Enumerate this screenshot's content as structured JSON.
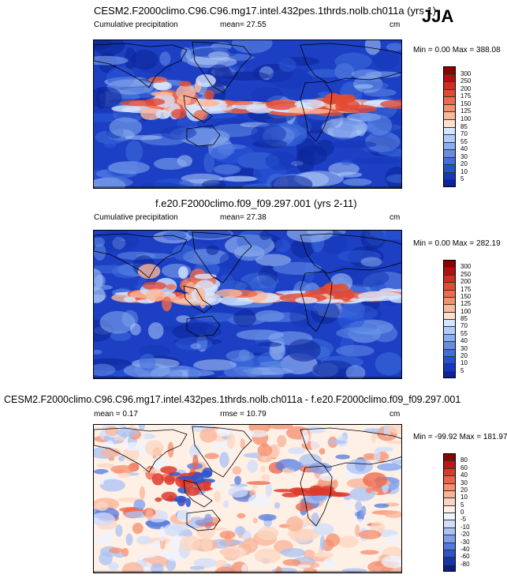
{
  "season_label": "JJA",
  "panels": [
    {
      "title": "CESM2.F2000climo.C96.C96.mg17.intel.432pes.1thrds.nolb.ch011a (yrs 1)",
      "left_label": "Cumulative precipitation",
      "center_label": "mean=  27.55",
      "units": "cm",
      "minmax": "Min =   0.00 Max = 388.08",
      "colorbar_ticks": [
        "300",
        "250",
        "200",
        "175",
        "150",
        "125",
        "100",
        "85",
        "70",
        "55",
        "40",
        "30",
        "20",
        "10",
        "5"
      ],
      "colors": [
        "#8b0000",
        "#b40f0f",
        "#d42a1f",
        "#e34a33",
        "#ef6a4c",
        "#f5906f",
        "#fbb89a",
        "#ffe0cc",
        "#d6e6ff",
        "#b0ccf8",
        "#8aaef0",
        "#648ee6",
        "#3f6fdc",
        "#2352cf",
        "#1538b8",
        "#0c2497"
      ]
    },
    {
      "title": "f.e20.F2000climo.f09_f09.297.001 (yrs 2-11)",
      "left_label": "Cumulative precipitation",
      "center_label": "mean=  27.38",
      "units": "cm",
      "minmax": "Min =   0.00 Max = 282.19",
      "colorbar_ticks": [
        "300",
        "250",
        "200",
        "175",
        "150",
        "125",
        "100",
        "85",
        "70",
        "55",
        "40",
        "30",
        "20",
        "10",
        "5"
      ],
      "colors": [
        "#8b0000",
        "#b40f0f",
        "#d42a1f",
        "#e34a33",
        "#ef6a4c",
        "#f5906f",
        "#fbb89a",
        "#ffe0cc",
        "#d6e6ff",
        "#b0ccf8",
        "#8aaef0",
        "#648ee6",
        "#3f6fdc",
        "#2352cf",
        "#1538b8",
        "#0c2497"
      ]
    },
    {
      "title": "CESM2.F2000climo.C96.C96.mg17.intel.432pes.1thrds.nolb.ch011a - f.e20.F2000climo.f09_f09.297.001",
      "left_label": "mean =   0.17",
      "center_label": "rmse =  10.79",
      "units": "cm",
      "minmax": "Min = -99.92 Max = 181.97",
      "colorbar_ticks": [
        "80",
        "60",
        "40",
        "30",
        "20",
        "10",
        "5",
        "0",
        "-5",
        "-10",
        "-20",
        "-30",
        "-40",
        "-60",
        "-80"
      ],
      "colors": [
        "#8b0000",
        "#c0151a",
        "#de3a2a",
        "#ee6347",
        "#f58e6c",
        "#f9b397",
        "#fcd5c0",
        "#fff0e6",
        "#eef3ff",
        "#d0ddfb",
        "#aac2f4",
        "#7f9fea",
        "#5479de",
        "#2f53cd",
        "#1733b0",
        "#0a1c86"
      ]
    }
  ],
  "chart_data": [
    {
      "type": "heatmap",
      "title": "CESM2.F2000climo.C96.C96.mg17.intel.432pes.1thrds.nolb.ch011a (yrs 1)",
      "variable": "Cumulative precipitation",
      "units": "cm",
      "mean": 27.55,
      "min": 0.0,
      "max": 388.08,
      "levels": [
        5,
        10,
        20,
        30,
        40,
        55,
        70,
        85,
        100,
        125,
        150,
        175,
        200,
        250,
        300
      ]
    },
    {
      "type": "heatmap",
      "title": "f.e20.F2000climo.f09_f09.297.001 (yrs 2-11)",
      "variable": "Cumulative precipitation",
      "units": "cm",
      "mean": 27.38,
      "min": 0.0,
      "max": 282.19,
      "levels": [
        5,
        10,
        20,
        30,
        40,
        55,
        70,
        85,
        100,
        125,
        150,
        175,
        200,
        250,
        300
      ]
    },
    {
      "type": "heatmap",
      "title": "CESM2.F2000climo.C96.C96.mg17.intel.432pes.1thrds.nolb.ch011a - f.e20.F2000climo.f09_f09.297.001",
      "units": "cm",
      "mean": 0.17,
      "rmse": 10.79,
      "min": -99.92,
      "max": 181.97,
      "levels": [
        -80,
        -60,
        -40,
        -30,
        -20,
        -10,
        -5,
        0,
        5,
        10,
        20,
        30,
        40,
        60,
        80
      ]
    }
  ]
}
